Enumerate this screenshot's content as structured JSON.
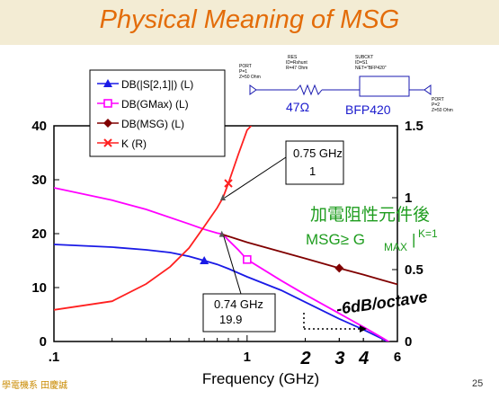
{
  "slide": {
    "title": "Physical Meaning of MSG",
    "footer_left": "學電機系 田慶誠",
    "page_number": "25"
  },
  "schematic": {
    "port1": [
      "PORT",
      "P=1",
      "Z=50 Ohm"
    ],
    "res": [
      "RES",
      "ID=Rshunt",
      "R=47 Ohm"
    ],
    "subckt": [
      "SUBCKT",
      "ID=S1",
      "NET=\"BFP420\""
    ],
    "port2": [
      "PORT",
      "P=2",
      "Z=50 Ohm"
    ],
    "resistor_label": "47Ω",
    "transistor_label": "BFP420"
  },
  "annotations": {
    "chinese_note": "加電阻性元件後",
    "msg_note": "MSG≥ G",
    "msg_note_sub": "MAX",
    "msg_note_sup": "K=1",
    "rolloff_note": "-6dB/octave",
    "hand_numbers": [
      "2",
      "3",
      "4"
    ],
    "marker_1": [
      "0.75 GHz",
      "1"
    ],
    "marker_2": [
      "0.74 GHz",
      "19.9"
    ]
  },
  "chart_data": {
    "type": "line",
    "xlabel": "Frequency (GHz)",
    "x_scale": "log",
    "xlim": [
      0.1,
      6
    ],
    "x_ticks": [
      ".1",
      "1",
      "6"
    ],
    "ylim_left": [
      0,
      40
    ],
    "y_ticks_left": [
      "0",
      "10",
      "20",
      "30",
      "40"
    ],
    "ylim_right": [
      0,
      1.5
    ],
    "y_ticks_right": [
      "0",
      "0.5",
      "1",
      "1.5"
    ],
    "grid": false,
    "legend_position": "top-left",
    "series": [
      {
        "name": "DB(|S[2,1]|) (L)",
        "axis": "left",
        "color": "#1a1ae6",
        "marker": "triangle",
        "x": [
          0.1,
          0.2,
          0.3,
          0.4,
          0.5,
          0.6,
          0.7,
          0.8,
          1.0,
          1.5,
          2.0,
          3.0,
          4.0,
          5.0,
          6.0
        ],
        "y": [
          18,
          17.5,
          17,
          16.5,
          15.8,
          15,
          14.3,
          13.5,
          12,
          9.5,
          7.3,
          4.2,
          2.2,
          0.5,
          -1
        ]
      },
      {
        "name": "DB(GMax) (L)",
        "axis": "left",
        "color": "#ff00ff",
        "marker": "square",
        "x": [
          0.1,
          0.2,
          0.3,
          0.5,
          0.6,
          0.7,
          0.75,
          0.8,
          0.9,
          1.0,
          1.5,
          2.0,
          3.0,
          4.0,
          5.0,
          6.0
        ],
        "y": [
          28.5,
          26.2,
          24.5,
          21.8,
          20.8,
          20.1,
          19.9,
          18.8,
          17,
          15.2,
          11.3,
          8.7,
          5.2,
          2.7,
          0.7,
          -1
        ]
      },
      {
        "name": "DB(MSG) (L)",
        "axis": "left",
        "color": "#800000",
        "marker": "diamond",
        "x": [
          0.74,
          1.0,
          2.0,
          3.0,
          4.0,
          5.0,
          6.0
        ],
        "y": [
          19.9,
          18.4,
          15.4,
          13.6,
          12.4,
          11.4,
          10.6
        ]
      },
      {
        "name": "K (R)",
        "axis": "right",
        "color": "#ff2020",
        "marker": "x",
        "x": [
          0.1,
          0.2,
          0.3,
          0.4,
          0.5,
          0.6,
          0.7,
          0.75,
          0.8,
          0.9,
          1.0,
          1.05
        ],
        "y": [
          0.22,
          0.28,
          0.4,
          0.52,
          0.65,
          0.8,
          0.93,
          1.0,
          1.1,
          1.3,
          1.47,
          1.5
        ]
      }
    ]
  }
}
